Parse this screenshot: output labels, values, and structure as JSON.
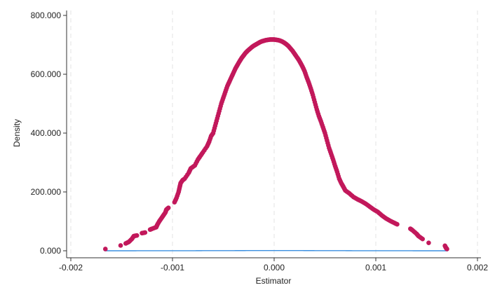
{
  "chart_data": {
    "type": "scatter",
    "title": "",
    "xlabel": "Estimator",
    "ylabel": "Density",
    "xlim": [
      -0.002,
      0.002
    ],
    "ylim": [
      0,
      800000
    ],
    "x_ticks": [
      -0.002,
      -0.001,
      0,
      0.001,
      0.002
    ],
    "x_tick_labels": [
      "-0.002",
      "-0.001",
      "0.000",
      "0.001",
      "0.002"
    ],
    "y_ticks": [
      0,
      200000,
      400000,
      600000,
      800000
    ],
    "y_tick_labels": [
      "0.000",
      "200.000",
      "400.000",
      "600.000",
      "800.000"
    ],
    "grid": "vertical dashed lines at x ticks",
    "legend": "none",
    "colors": {
      "points": "#c2185b",
      "normal_curve": "#3a8fe0",
      "grid": "#e3e3e3",
      "axis": "#333333"
    },
    "normal_curve": {
      "mean": 0.0,
      "sd": 0.000555,
      "x_range": [
        -0.00167,
        0.00171
      ]
    },
    "series": [
      {
        "kind": "points",
        "points": [
          [
            -0.00166,
            6000
          ],
          [
            -0.00151,
            18000
          ],
          [
            -0.00146,
            25000
          ],
          [
            -0.00143,
            30000
          ],
          [
            -0.0014,
            40000
          ],
          [
            -0.00138,
            50000
          ],
          [
            -0.00135,
            52000
          ],
          [
            -0.0013,
            60000
          ],
          [
            -0.00127,
            62000
          ],
          [
            -0.00122,
            72000
          ],
          [
            -0.0012,
            75000
          ],
          [
            -0.00116,
            80000
          ],
          [
            -0.00115,
            88000
          ],
          [
            -0.00113,
            100000
          ],
          [
            -0.00111,
            110000
          ],
          [
            -0.00109,
            120000
          ],
          [
            -0.00107,
            130000
          ],
          [
            -0.00106,
            140000
          ],
          [
            -0.00104,
            146000
          ],
          [
            -0.00098,
            165000
          ],
          [
            -0.00096,
            180000
          ],
          [
            -0.00094,
            200000
          ],
          [
            -0.00093,
            215000
          ],
          [
            -0.00092,
            230000
          ],
          [
            -0.0009,
            240000
          ],
          [
            -0.00088,
            245000
          ],
          [
            -0.00084,
            265000
          ],
          [
            -0.00082,
            280000
          ],
          [
            -0.00078,
            290000
          ],
          [
            -0.00075,
            310000
          ],
          [
            -0.00073,
            320000
          ],
          [
            -0.0007,
            335000
          ],
          [
            -0.00066,
            355000
          ],
          [
            -0.00064,
            370000
          ],
          [
            -0.00062,
            390000
          ],
          [
            -0.0006,
            400000
          ],
          [
            -0.00058,
            425000
          ],
          [
            -0.00056,
            450000
          ],
          [
            -0.00054,
            475000
          ],
          [
            -0.00052,
            500000
          ],
          [
            -0.0005,
            520000
          ],
          [
            -0.00048,
            540000
          ],
          [
            -0.00046,
            560000
          ],
          [
            -0.00044,
            575000
          ],
          [
            -0.00042,
            590000
          ],
          [
            -0.0004,
            605000
          ],
          [
            -0.00038,
            620000
          ],
          [
            -0.00036,
            632000
          ],
          [
            -0.00034,
            644000
          ],
          [
            -0.00032,
            655000
          ],
          [
            -0.0003,
            664000
          ],
          [
            -0.00028,
            673000
          ],
          [
            -0.00026,
            680000
          ],
          [
            -0.00024,
            686000
          ],
          [
            -0.00022,
            692000
          ],
          [
            -0.0002,
            697000
          ],
          [
            -0.00018,
            701000
          ],
          [
            -0.00016,
            705000
          ],
          [
            -0.00014,
            709000
          ],
          [
            -0.00012,
            712000
          ],
          [
            -0.0001,
            714000
          ],
          [
            -8e-05,
            716000
          ],
          [
            -6e-05,
            717000
          ],
          [
            -4e-05,
            718000
          ],
          [
            -2e-05,
            718000
          ],
          [
            0.0,
            718000
          ],
          [
            2e-05,
            717000
          ],
          [
            4e-05,
            716000
          ],
          [
            6e-05,
            714000
          ],
          [
            8e-05,
            711000
          ],
          [
            0.0001,
            707000
          ],
          [
            0.00012,
            702000
          ],
          [
            0.00014,
            696000
          ],
          [
            0.00016,
            688000
          ],
          [
            0.00018,
            680000
          ],
          [
            0.0002,
            670000
          ],
          [
            0.00022,
            660000
          ],
          [
            0.00024,
            650000
          ],
          [
            0.00026,
            638000
          ],
          [
            0.00028,
            625000
          ],
          [
            0.0003,
            610000
          ],
          [
            0.00032,
            590000
          ],
          [
            0.00034,
            572000
          ],
          [
            0.00036,
            552000
          ],
          [
            0.00038,
            530000
          ],
          [
            0.0004,
            505000
          ],
          [
            0.00042,
            480000
          ],
          [
            0.00044,
            458000
          ],
          [
            0.00046,
            440000
          ],
          [
            0.00048,
            420000
          ],
          [
            0.0005,
            400000
          ],
          [
            0.00052,
            375000
          ],
          [
            0.00054,
            350000
          ],
          [
            0.00056,
            330000
          ],
          [
            0.00058,
            310000
          ],
          [
            0.0006,
            288000
          ],
          [
            0.00062,
            268000
          ],
          [
            0.00064,
            245000
          ],
          [
            0.00066,
            230000
          ],
          [
            0.00068,
            218000
          ],
          [
            0.0007,
            205000
          ],
          [
            0.00074,
            195000
          ],
          [
            0.00078,
            183000
          ],
          [
            0.00082,
            175000
          ],
          [
            0.00086,
            168000
          ],
          [
            0.0009,
            160000
          ],
          [
            0.00094,
            150000
          ],
          [
            0.00098,
            140000
          ],
          [
            0.00102,
            132000
          ],
          [
            0.00106,
            120000
          ],
          [
            0.0011,
            110000
          ],
          [
            0.00114,
            102000
          ],
          [
            0.00118,
            95000
          ],
          [
            0.00121,
            90000
          ],
          [
            0.00134,
            75000
          ],
          [
            0.00136,
            70000
          ],
          [
            0.0014,
            58000
          ],
          [
            0.00142,
            50000
          ],
          [
            0.00146,
            40000
          ],
          [
            0.00152,
            27000
          ],
          [
            0.00168,
            17000
          ],
          [
            0.00169,
            10000
          ],
          [
            0.0017,
            6000
          ]
        ]
      }
    ]
  }
}
